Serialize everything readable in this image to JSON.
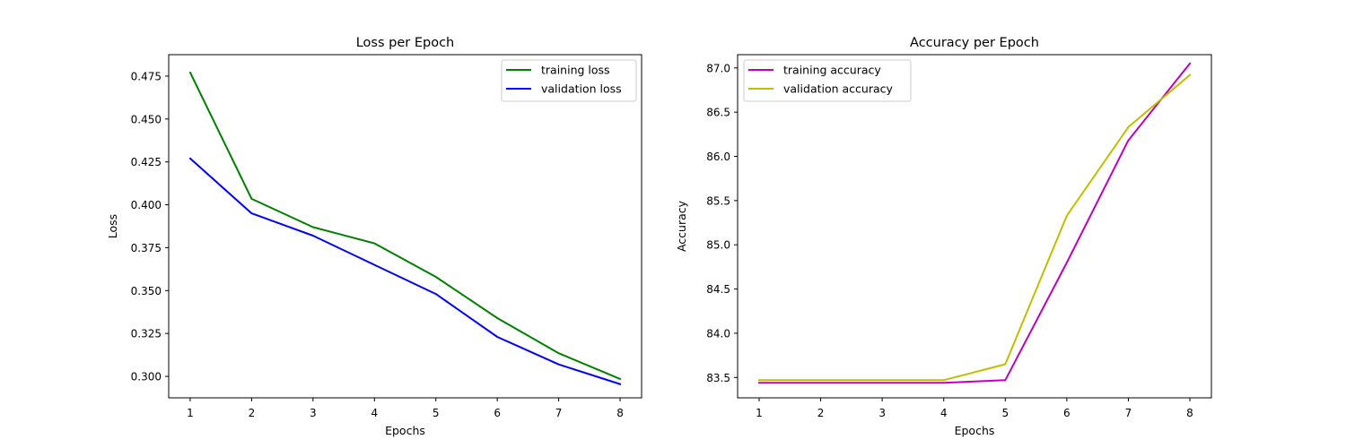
{
  "chart_data": [
    {
      "type": "line",
      "title": "Loss per Epoch",
      "xlabel": "Epochs",
      "ylabel": "Loss",
      "x": [
        1,
        2,
        3,
        4,
        5,
        6,
        7,
        8
      ],
      "xlim": [
        0.65,
        8.35
      ],
      "ylim": [
        0.2875,
        0.4875
      ],
      "xticks": [
        "1",
        "2",
        "3",
        "4",
        "5",
        "6",
        "7",
        "8"
      ],
      "yticks": [
        "0.300",
        "0.325",
        "0.350",
        "0.375",
        "0.400",
        "0.425",
        "0.450",
        "0.475"
      ],
      "grid": false,
      "legend_position": "top-right",
      "series": [
        {
          "name": "training loss",
          "color": "#008000",
          "values": [
            0.477,
            0.4035,
            0.387,
            0.3775,
            0.358,
            0.334,
            0.3135,
            0.2985
          ]
        },
        {
          "name": "validation loss",
          "color": "#0000ff",
          "values": [
            0.427,
            0.395,
            0.382,
            0.365,
            0.348,
            0.323,
            0.307,
            0.2955
          ]
        }
      ]
    },
    {
      "type": "line",
      "title": "Accuracy per Epoch",
      "xlabel": "Epochs",
      "ylabel": "Accuracy",
      "x": [
        1,
        2,
        3,
        4,
        5,
        6,
        7,
        8
      ],
      "xlim": [
        0.65,
        8.35
      ],
      "ylim": [
        83.27,
        87.15
      ],
      "xticks": [
        "1",
        "2",
        "3",
        "4",
        "5",
        "6",
        "7",
        "8"
      ],
      "yticks": [
        "83.5",
        "84.0",
        "84.5",
        "85.0",
        "85.5",
        "86.0",
        "86.5",
        "87.0"
      ],
      "grid": false,
      "legend_position": "top-left",
      "series": [
        {
          "name": "training accuracy",
          "color": "#bf00bf",
          "values": [
            83.44,
            83.44,
            83.44,
            83.44,
            83.47,
            84.8,
            86.18,
            87.05
          ]
        },
        {
          "name": "validation accuracy",
          "color": "#bfbf00",
          "values": [
            83.47,
            83.47,
            83.47,
            83.47,
            83.65,
            85.33,
            86.33,
            86.92
          ]
        }
      ]
    }
  ]
}
